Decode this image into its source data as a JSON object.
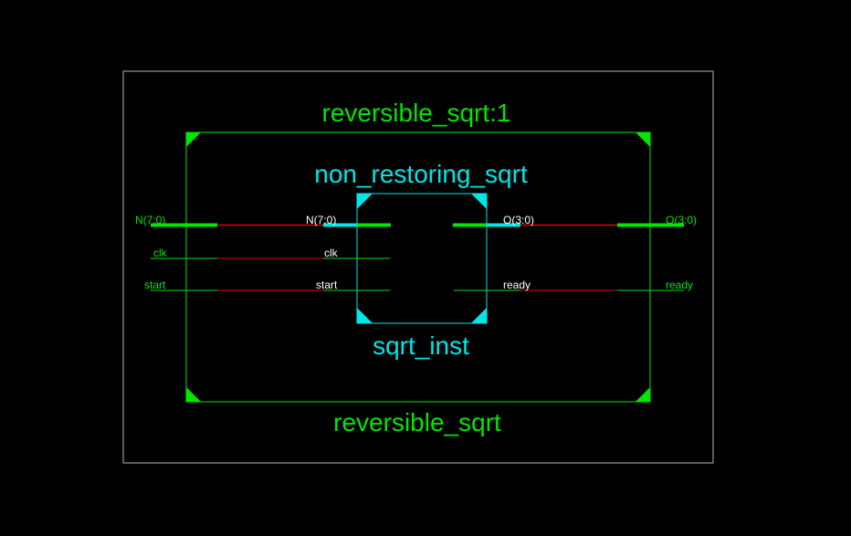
{
  "schematic": {
    "outer_instance_name": "reversible_sqrt:1",
    "outer_cell_name": "reversible_sqrt",
    "inner_cell_name": "non_restoring_sqrt",
    "inner_instance_name": "sqrt_inst",
    "outer_ports_left": [
      "N(7:0)",
      "clk",
      "start"
    ],
    "outer_ports_right": [
      "O(3:0)",
      "ready"
    ],
    "inner_ports_left": [
      "N(7:0)",
      "clk",
      "start"
    ],
    "inner_ports_right": [
      "O(3:0)",
      "ready"
    ]
  },
  "colors": {
    "background": "#000000",
    "frame": "#b4b4b4",
    "outer_block": "#00e600",
    "inner_block": "#00e6e6",
    "net": "#e60000"
  }
}
